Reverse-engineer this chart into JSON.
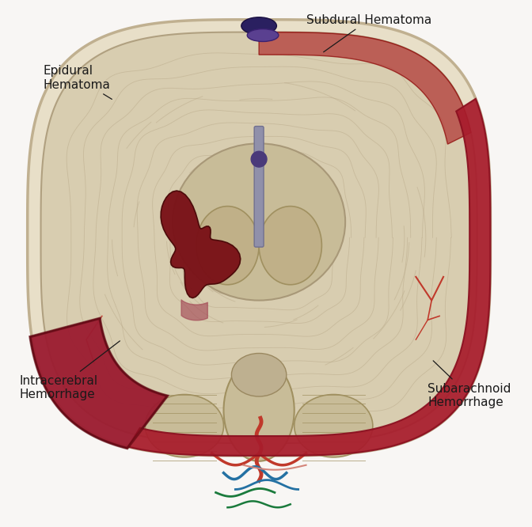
{
  "bg_color": "#f8f6f4",
  "brain_bg": "#e8e0d0",
  "brain_gyri_main": "#d4c8a8",
  "brain_gyri_dark": "#b8a888",
  "brain_gyri_light": "#e0d4b8",
  "inner_structure": "#c8b890",
  "inner_dark": "#a89060",
  "epidural_color": "#9b1b30",
  "epidural_dark": "#7a0f20",
  "subdural_color": "#a81c2c",
  "subdural_dark": "#8b1020",
  "intracerebral_color": "#7a1218",
  "intracerebral_dark": "#4a0808",
  "vessel_red": "#c0392b",
  "vessel_blue": "#2471a3",
  "vessel_green": "#1a7a3c",
  "vessel_pink": "#d4857a",
  "sinus_color": "#4a3a7a",
  "text_color": "#1a1a1a",
  "font_size": 11,
  "labels": {
    "epidural": "Epidural\nHematoma",
    "subdural": "Subdural Hematoma",
    "intracerebral": "Intracerebral\nHemorrhage",
    "subarachnoid": "Subarachnoid\nHemorrhage"
  }
}
